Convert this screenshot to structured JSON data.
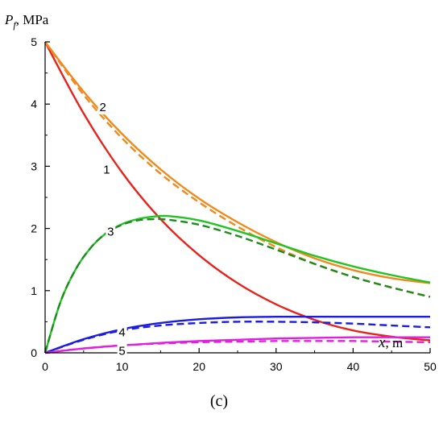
{
  "chart_data": {
    "type": "line",
    "ylabel": "P_f, MPa",
    "ylabel_parts": {
      "symbol": "P",
      "subscript": "f",
      "unit": ", MPa"
    },
    "xlabel": "x, m",
    "xlabel_parts": {
      "symbol": "x",
      "unit": ", m"
    },
    "panel_label": "(c)",
    "xlim": [
      0,
      50
    ],
    "ylim": [
      0,
      5
    ],
    "x_ticks": [
      0,
      10,
      20,
      30,
      40,
      50
    ],
    "y_ticks": [
      0,
      1,
      2,
      3,
      4,
      5
    ],
    "grid": false,
    "series": [
      {
        "name": "1",
        "color": "#e8221c",
        "style": "solid",
        "x": [
          0,
          5,
          10,
          15,
          20,
          25,
          30,
          35,
          40,
          45,
          50
        ],
        "y": [
          5.0,
          3.85,
          2.9,
          2.15,
          1.57,
          1.12,
          0.78,
          0.53,
          0.36,
          0.26,
          0.2
        ]
      },
      {
        "name": "2",
        "color": "#f08a1c",
        "style": "solid",
        "x": [
          0,
          5,
          10,
          15,
          20,
          25,
          30,
          35,
          40,
          45,
          50
        ],
        "y": [
          5.0,
          4.2,
          3.52,
          2.95,
          2.48,
          2.1,
          1.78,
          1.52,
          1.33,
          1.2,
          1.12
        ]
      },
      {
        "name": "2",
        "color": "#f08a1c",
        "style": "dashed",
        "x": [
          0,
          5,
          10,
          15,
          20,
          25,
          30,
          35,
          40,
          45,
          50
        ],
        "y": [
          5.0,
          4.15,
          3.45,
          2.88,
          2.42,
          2.03,
          1.7,
          1.43,
          1.22,
          1.05,
          0.9
        ]
      },
      {
        "name": "3",
        "color": "#22c422",
        "style": "solid",
        "x": [
          0,
          2,
          4,
          6,
          8,
          10,
          12,
          14,
          16,
          20,
          25,
          30,
          35,
          40,
          45,
          50
        ],
        "y": [
          0.0,
          0.82,
          1.35,
          1.7,
          1.93,
          2.07,
          2.15,
          2.19,
          2.2,
          2.13,
          1.96,
          1.76,
          1.56,
          1.39,
          1.25,
          1.13
        ]
      },
      {
        "name": "3",
        "color": "#1f8a1f",
        "style": "dashed",
        "x": [
          0,
          2,
          4,
          6,
          8,
          10,
          12,
          14,
          16,
          20,
          25,
          30,
          35,
          40,
          45,
          50
        ],
        "y": [
          0.0,
          0.82,
          1.35,
          1.7,
          1.93,
          2.06,
          2.13,
          2.15,
          2.14,
          2.06,
          1.88,
          1.66,
          1.43,
          1.22,
          1.05,
          0.9
        ]
      },
      {
        "name": "4",
        "color": "#1c1ce0",
        "style": "solid",
        "x": [
          0,
          5,
          10,
          15,
          20,
          25,
          30,
          35,
          40,
          45,
          50
        ],
        "y": [
          0.0,
          0.22,
          0.38,
          0.48,
          0.54,
          0.57,
          0.58,
          0.58,
          0.58,
          0.58,
          0.58
        ]
      },
      {
        "name": "4",
        "color": "#1c1ce0",
        "style": "dashed",
        "x": [
          0,
          5,
          10,
          15,
          20,
          25,
          30,
          35,
          40,
          45,
          50
        ],
        "y": [
          0.0,
          0.21,
          0.36,
          0.44,
          0.48,
          0.5,
          0.5,
          0.49,
          0.47,
          0.44,
          0.41
        ]
      },
      {
        "name": "5",
        "color": "#e020e0",
        "style": "solid",
        "x": [
          0,
          5,
          10,
          15,
          20,
          25,
          30,
          35,
          40,
          45,
          50
        ],
        "y": [
          0.0,
          0.07,
          0.12,
          0.16,
          0.19,
          0.21,
          0.23,
          0.24,
          0.25,
          0.25,
          0.25
        ]
      },
      {
        "name": "5",
        "color": "#e020e0",
        "style": "dashed",
        "x": [
          0,
          5,
          10,
          15,
          20,
          25,
          30,
          35,
          40,
          45,
          50
        ],
        "y": [
          0.0,
          0.07,
          0.12,
          0.15,
          0.17,
          0.18,
          0.19,
          0.19,
          0.19,
          0.18,
          0.17
        ]
      }
    ],
    "curve_labels": [
      {
        "text": "1",
        "x": 8.0,
        "y": 2.95
      },
      {
        "text": "2",
        "x": 7.5,
        "y": 3.95
      },
      {
        "text": "3",
        "x": 8.5,
        "y": 1.95
      },
      {
        "text": "4",
        "x": 10.0,
        "y": 0.33
      },
      {
        "text": "5",
        "x": 10.0,
        "y": 0.03
      }
    ]
  }
}
